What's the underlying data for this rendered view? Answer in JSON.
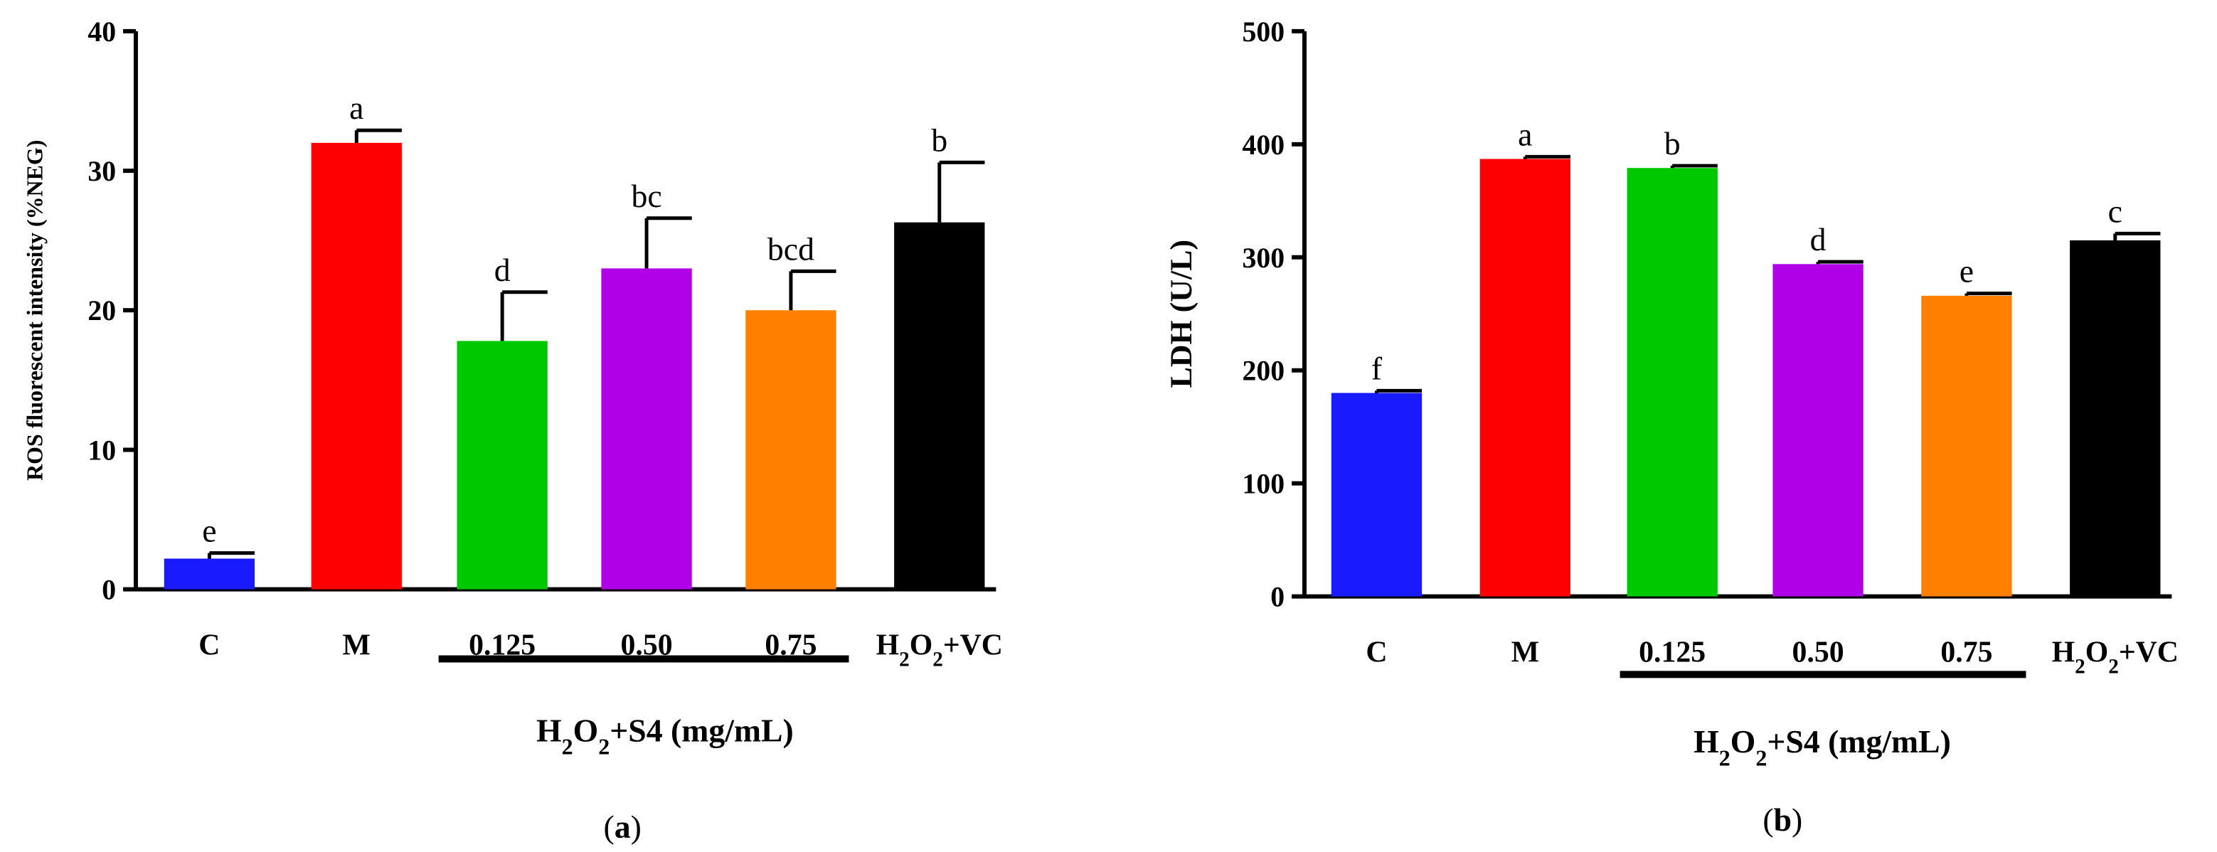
{
  "chart_data": [
    {
      "type": "bar",
      "panel_label": "a",
      "ylabel": "ROS fluorescent intensity (%NEG)",
      "ylim": [
        0,
        40
      ],
      "yticks": [
        0,
        10,
        20,
        30,
        40
      ],
      "categories": [
        "C",
        "M",
        "0.125",
        "0.50",
        "0.75",
        "H2O2+VC"
      ],
      "values": [
        2.2,
        32.0,
        17.8,
        23.0,
        20.0,
        26.3
      ],
      "errors": [
        0.4,
        0.9,
        3.5,
        3.6,
        2.8,
        4.3
      ],
      "significance": [
        "e",
        "a",
        "d",
        "bc",
        "bcd",
        "b"
      ],
      "colors": [
        "#1a1aff",
        "#ff0000",
        "#00c800",
        "#b000e8",
        "#ff8000",
        "#000000"
      ],
      "group_label": "H2O2+S4 (mg/mL)"
    },
    {
      "type": "bar",
      "panel_label": "b",
      "ylabel": "LDH (U/L)",
      "ylim": [
        0,
        500
      ],
      "yticks": [
        0,
        100,
        200,
        300,
        400,
        500
      ],
      "categories": [
        "C",
        "M",
        "0.125",
        "0.50",
        "0.75",
        "H2O2+VC"
      ],
      "values": [
        180,
        387,
        379,
        294,
        266,
        315
      ],
      "errors": [
        2,
        2,
        2,
        2,
        2,
        6
      ],
      "significance": [
        "f",
        "a",
        "b",
        "d",
        "e",
        "c"
      ],
      "colors": [
        "#1a1aff",
        "#ff0000",
        "#00c800",
        "#b000e8",
        "#ff8000",
        "#000000"
      ],
      "group_label": "H2O2+S4 (mg/mL)"
    }
  ]
}
